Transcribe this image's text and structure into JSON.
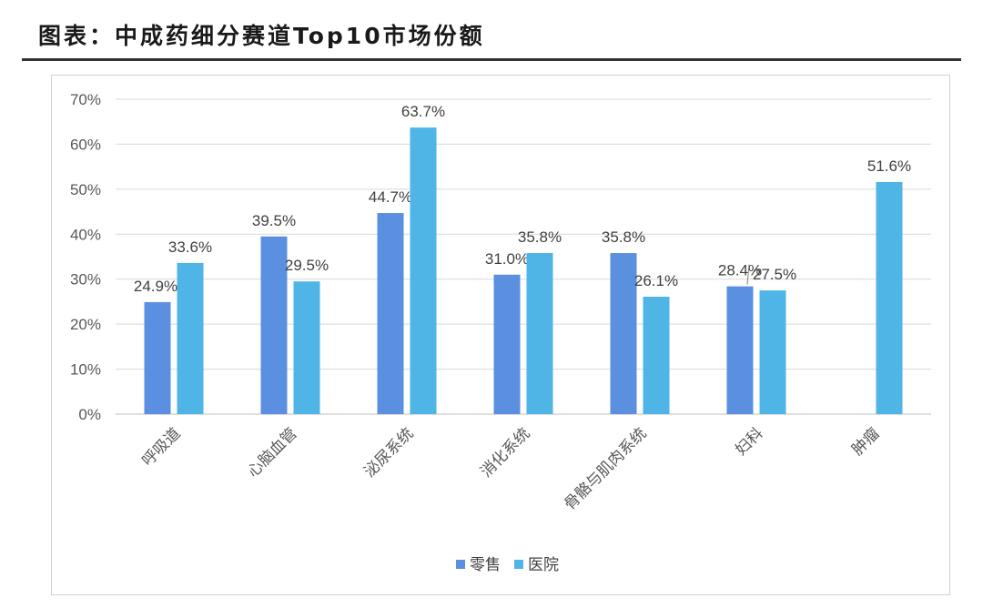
{
  "header": {
    "title": "图表：中成药细分赛道Top10市场份额"
  },
  "colors": {
    "retail": "#5B8FE0",
    "hospital": "#4FB5E6",
    "grid": "#D9D9D9",
    "axis": "#BFBFBF"
  },
  "chart_data": {
    "type": "bar",
    "title": "",
    "xlabel": "",
    "ylabel": "",
    "ylim": [
      0,
      70
    ],
    "y_ticks": [
      "0%",
      "10%",
      "20%",
      "30%",
      "40%",
      "50%",
      "60%",
      "70%"
    ],
    "grid": true,
    "legend_position": "bottom-center",
    "categories": [
      "呼吸道",
      "心脑血管",
      "泌尿系统",
      "消化系统",
      "骨骼与肌肉系统",
      "妇科",
      "肿瘤"
    ],
    "series": [
      {
        "name": "零售",
        "color": "#5B8FE0",
        "values": [
          24.9,
          39.5,
          44.7,
          31.0,
          35.8,
          28.4,
          null
        ],
        "labels": [
          "24.9%",
          "39.5%",
          "44.7%",
          "31.0%",
          "35.8%",
          "28.4%",
          ""
        ]
      },
      {
        "name": "医院",
        "color": "#4FB5E6",
        "values": [
          33.6,
          29.5,
          63.7,
          35.8,
          26.1,
          27.5,
          51.6
        ],
        "labels": [
          "33.6%",
          "29.5%",
          "63.7%",
          "35.8%",
          "26.1%",
          "27.5%",
          "51.6%"
        ]
      }
    ]
  }
}
